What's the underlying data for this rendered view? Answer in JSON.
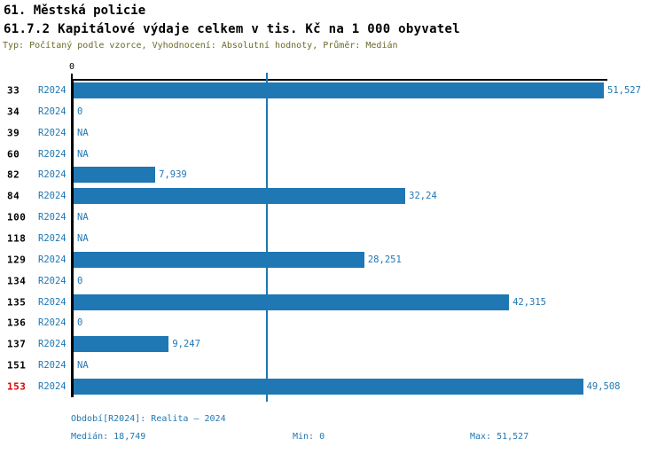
{
  "chart_data": {
    "type": "bar",
    "orientation": "horizontal",
    "title": "61. Městská policie",
    "subtitle": "61.7.2 Kapitálové výdaje celkem v tis. Kč na 1 000 obyvatel",
    "annotation": "Typ: Počítaný podle vzorce, Vyhodnocení: Absolutní hodnoty, Průměr: Medián",
    "x_axis": {
      "min": 0,
      "tick_labels": [
        "0"
      ],
      "grid": false
    },
    "max_value": 51527,
    "median_value": 18749,
    "series_label": "R2024",
    "legend_position": "none",
    "categories": [
      "33",
      "34",
      "39",
      "60",
      "82",
      "84",
      "100",
      "118",
      "129",
      "134",
      "135",
      "136",
      "137",
      "151",
      "153"
    ],
    "rows": [
      {
        "id": "33",
        "series": "R2024",
        "value": 51527,
        "display": "51,527",
        "highlight": false
      },
      {
        "id": "34",
        "series": "R2024",
        "value": 0,
        "display": "0",
        "highlight": false
      },
      {
        "id": "39",
        "series": "R2024",
        "value": null,
        "display": "NA",
        "highlight": false
      },
      {
        "id": "60",
        "series": "R2024",
        "value": null,
        "display": "NA",
        "highlight": false
      },
      {
        "id": "82",
        "series": "R2024",
        "value": 7939,
        "display": "7,939",
        "highlight": false
      },
      {
        "id": "84",
        "series": "R2024",
        "value": 32240,
        "display": "32,24",
        "highlight": false
      },
      {
        "id": "100",
        "series": "R2024",
        "value": null,
        "display": "NA",
        "highlight": false
      },
      {
        "id": "118",
        "series": "R2024",
        "value": null,
        "display": "NA",
        "highlight": false
      },
      {
        "id": "129",
        "series": "R2024",
        "value": 28251,
        "display": "28,251",
        "highlight": false
      },
      {
        "id": "134",
        "series": "R2024",
        "value": 0,
        "display": "0",
        "highlight": false
      },
      {
        "id": "135",
        "series": "R2024",
        "value": 42315,
        "display": "42,315",
        "highlight": false
      },
      {
        "id": "136",
        "series": "R2024",
        "value": 0,
        "display": "0",
        "highlight": false
      },
      {
        "id": "137",
        "series": "R2024",
        "value": 9247,
        "display": "9,247",
        "highlight": false
      },
      {
        "id": "151",
        "series": "R2024",
        "value": null,
        "display": "NA",
        "highlight": false
      },
      {
        "id": "153",
        "series": "R2024",
        "value": 49508,
        "display": "49,508",
        "highlight": true
      }
    ]
  },
  "footer": {
    "period": "Období[R2024]: Realita – 2024",
    "median": "Medián: 18,749",
    "min": "Min: 0",
    "max": "Max: 51,527"
  },
  "colors": {
    "bar": "#1f77b4",
    "text_blue": "#1f77b4",
    "meta_olive": "#6b6b2a",
    "highlight_red": "#d60000",
    "axis_black": "#000000",
    "background": "#ffffff"
  }
}
